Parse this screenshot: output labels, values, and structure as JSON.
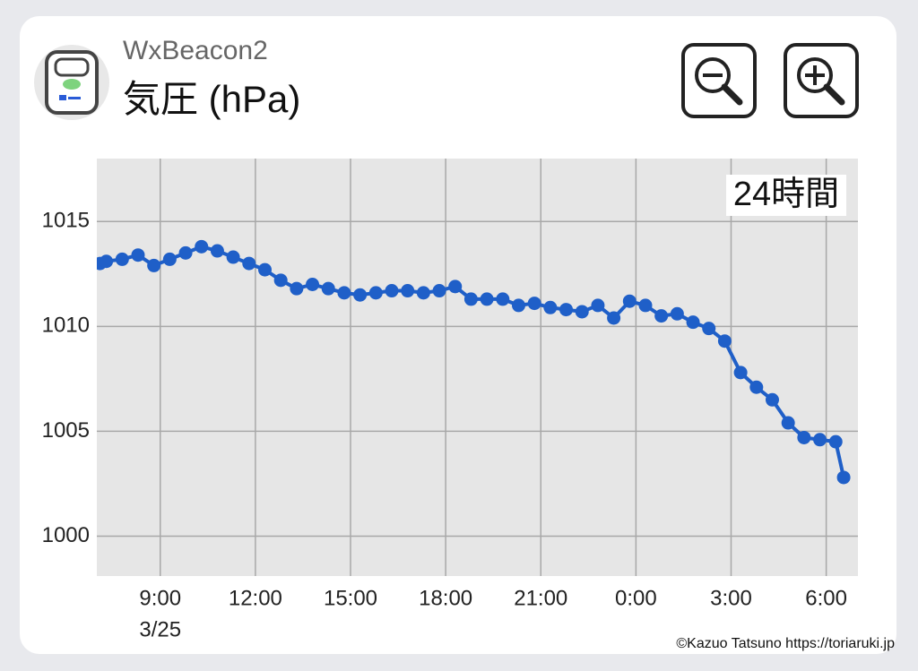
{
  "app_name": "WxBeacon2",
  "range_label": "24時間",
  "credit": "©Kazuo Tatsuno https://toriaruki.jp",
  "chart_data": {
    "type": "line",
    "title": "気圧 (hPa)",
    "x": [
      7.1,
      7.3,
      7.8,
      8.3,
      8.8,
      9.3,
      9.8,
      10.3,
      10.8,
      11.3,
      11.8,
      12.3,
      12.8,
      13.3,
      13.8,
      14.3,
      14.8,
      15.3,
      15.8,
      16.3,
      16.8,
      17.3,
      17.8,
      18.3,
      18.8,
      19.3,
      19.8,
      20.3,
      20.8,
      21.3,
      21.8,
      22.3,
      22.8,
      23.3,
      23.8,
      24.3,
      24.8,
      25.3,
      25.8,
      26.3,
      26.8,
      27.3,
      27.8,
      28.3,
      28.8,
      29.3,
      29.8,
      30.3,
      30.55
    ],
    "values": [
      1013.0,
      1013.1,
      1013.2,
      1013.4,
      1012.9,
      1013.2,
      1013.5,
      1013.8,
      1013.6,
      1013.3,
      1013.0,
      1012.7,
      1012.2,
      1011.8,
      1012.0,
      1011.8,
      1011.6,
      1011.5,
      1011.6,
      1011.7,
      1011.7,
      1011.6,
      1011.7,
      1011.9,
      1011.3,
      1011.3,
      1011.3,
      1011.0,
      1011.1,
      1010.9,
      1010.8,
      1010.7,
      1011.0,
      1010.4,
      1011.2,
      1011.0,
      1010.5,
      1010.6,
      1010.2,
      1009.9,
      1009.3,
      1007.8,
      1007.1,
      1006.5,
      1005.4,
      1004.7,
      1004.6,
      1004.5,
      1002.8
    ],
    "color": "#1f5fc8",
    "xlim": [
      7.0,
      31.0
    ],
    "xticks": [
      {
        "value": 9,
        "label": "9:00"
      },
      {
        "value": 12,
        "label": "12:00"
      },
      {
        "value": 15,
        "label": "15:00"
      },
      {
        "value": 18,
        "label": "18:00"
      },
      {
        "value": 21,
        "label": "21:00"
      },
      {
        "value": 24,
        "label": "0:00"
      },
      {
        "value": 27,
        "label": "3:00"
      },
      {
        "value": 30,
        "label": "6:00"
      }
    ],
    "x_sublabel": "3/25",
    "ylim": [
      998.1,
      1018.0
    ],
    "yticks": [
      1000,
      1005,
      1010,
      1015
    ],
    "grid": true
  }
}
